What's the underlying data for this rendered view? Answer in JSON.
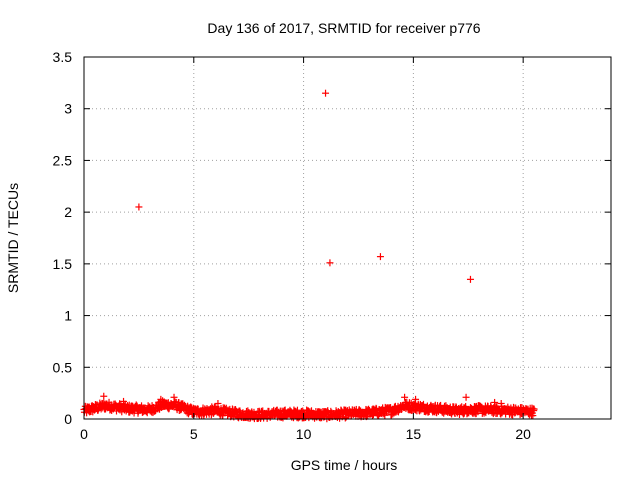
{
  "chart_data": {
    "type": "scatter",
    "title": "Day 136 of 2017, SRMTID for receiver p776",
    "xlabel": "GPS time / hours",
    "ylabel": "SRMTID / TECUs",
    "xlim": [
      0,
      24
    ],
    "ylim": [
      0,
      3.5
    ],
    "x_ticks": [
      "0",
      "5",
      "10",
      "15",
      "20"
    ],
    "y_ticks": [
      "0",
      "0.5",
      "1",
      "1.5",
      "2",
      "2.5",
      "3",
      "3.5"
    ],
    "grid": true,
    "legend": "none",
    "marker": "plus",
    "color": "#ff0000",
    "outliers": [
      {
        "x": 2.5,
        "y": 2.05
      },
      {
        "x": 11.0,
        "y": 3.15
      },
      {
        "x": 11.2,
        "y": 1.51
      },
      {
        "x": 13.5,
        "y": 1.57
      },
      {
        "x": 17.6,
        "y": 1.35
      }
    ],
    "background_band": {
      "x_range": [
        0,
        20.5
      ],
      "profile": [
        {
          "x": 0.0,
          "y": 0.08
        },
        {
          "x": 1.0,
          "y": 0.13
        },
        {
          "x": 2.0,
          "y": 0.1
        },
        {
          "x": 3.0,
          "y": 0.09
        },
        {
          "x": 3.6,
          "y": 0.14
        },
        {
          "x": 4.2,
          "y": 0.13
        },
        {
          "x": 5.0,
          "y": 0.07
        },
        {
          "x": 6.0,
          "y": 0.08
        },
        {
          "x": 7.0,
          "y": 0.05
        },
        {
          "x": 8.0,
          "y": 0.04
        },
        {
          "x": 9.0,
          "y": 0.05
        },
        {
          "x": 10.0,
          "y": 0.05
        },
        {
          "x": 11.0,
          "y": 0.04
        },
        {
          "x": 12.0,
          "y": 0.05
        },
        {
          "x": 13.0,
          "y": 0.06
        },
        {
          "x": 14.0,
          "y": 0.08
        },
        {
          "x": 14.6,
          "y": 0.13
        },
        {
          "x": 15.0,
          "y": 0.12
        },
        {
          "x": 16.0,
          "y": 0.1
        },
        {
          "x": 17.0,
          "y": 0.08
        },
        {
          "x": 17.5,
          "y": 0.09
        },
        {
          "x": 18.5,
          "y": 0.09
        },
        {
          "x": 19.5,
          "y": 0.08
        },
        {
          "x": 20.5,
          "y": 0.07
        }
      ],
      "spread": 0.04,
      "spikes": [
        {
          "x": 0.9,
          "y": 0.22
        },
        {
          "x": 1.8,
          "y": 0.17
        },
        {
          "x": 3.5,
          "y": 0.19
        },
        {
          "x": 4.1,
          "y": 0.21
        },
        {
          "x": 6.1,
          "y": 0.15
        },
        {
          "x": 14.6,
          "y": 0.21
        },
        {
          "x": 15.1,
          "y": 0.19
        },
        {
          "x": 17.4,
          "y": 0.21
        },
        {
          "x": 18.7,
          "y": 0.16
        },
        {
          "x": 19.0,
          "y": 0.15
        }
      ]
    }
  }
}
